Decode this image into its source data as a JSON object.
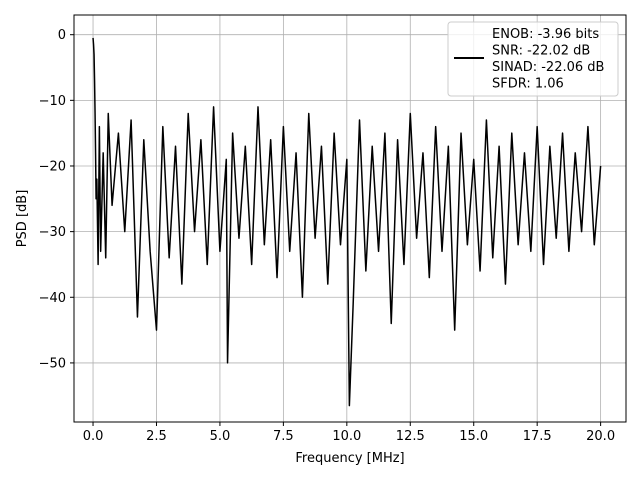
{
  "chart_data": {
    "type": "line",
    "title": "",
    "xlabel": "Frequency [MHz]",
    "ylabel": "PSD [dB]",
    "xlim": [
      -0.75,
      21.0
    ],
    "ylim": [
      -59,
      3
    ],
    "grid": true,
    "legend_position": "top-right",
    "x_ticks": [
      {
        "value": 0.0,
        "label": "0.0"
      },
      {
        "value": 2.5,
        "label": "2.5"
      },
      {
        "value": 5.0,
        "label": "5.0"
      },
      {
        "value": 7.5,
        "label": "7.5"
      },
      {
        "value": 10.0,
        "label": "10.0"
      },
      {
        "value": 12.5,
        "label": "12.5"
      },
      {
        "value": 15.0,
        "label": "15.0"
      },
      {
        "value": 17.5,
        "label": "17.5"
      },
      {
        "value": 20.0,
        "label": "20.0"
      }
    ],
    "y_ticks": [
      {
        "value": 0,
        "label": "0"
      },
      {
        "value": -10,
        "label": "−10"
      },
      {
        "value": -20,
        "label": "−20"
      },
      {
        "value": -30,
        "label": "−30"
      },
      {
        "value": -40,
        "label": "−40"
      },
      {
        "value": -50,
        "label": "−50"
      }
    ],
    "legend": {
      "entries": [
        "ENOB: -3.96 bits",
        "SNR: -22.02 dB",
        "SINAD: -22.06 dB",
        "SFDR: 1.06"
      ]
    },
    "colors": {
      "line": "#000000",
      "grid": "#b0b0b0",
      "axes": "#000000"
    },
    "series": [
      {
        "color": "#000000",
        "x": [
          0.0,
          0.02,
          0.04,
          0.06,
          0.08,
          0.1,
          0.12,
          0.15,
          0.2,
          0.25,
          0.3,
          0.4,
          0.5,
          0.6,
          0.75,
          1.0,
          1.25,
          1.5,
          1.75,
          2.0,
          2.25,
          2.5,
          2.75,
          3.0,
          3.25,
          3.5,
          3.75,
          4.0,
          4.25,
          4.5,
          4.75,
          5.0,
          5.25,
          5.3,
          5.5,
          5.75,
          6.0,
          6.25,
          6.5,
          6.75,
          7.0,
          7.25,
          7.5,
          7.75,
          8.0,
          8.25,
          8.5,
          8.75,
          9.0,
          9.25,
          9.5,
          9.75,
          10.0,
          10.1,
          10.25,
          10.5,
          10.75,
          11.0,
          11.25,
          11.5,
          11.75,
          12.0,
          12.25,
          12.5,
          12.75,
          13.0,
          13.25,
          13.5,
          13.75,
          14.0,
          14.25,
          14.5,
          14.75,
          15.0,
          15.25,
          15.5,
          15.75,
          16.0,
          16.25,
          16.5,
          16.75,
          17.0,
          17.25,
          17.5,
          17.75,
          18.0,
          18.25,
          18.5,
          18.75,
          19.0,
          19.25,
          19.5,
          19.75,
          20.0
        ],
        "y": [
          -0.5,
          -1.5,
          -3,
          -7,
          -12,
          -18,
          -25,
          -22,
          -35,
          -14,
          -33,
          -18,
          -34,
          -12,
          -26,
          -15,
          -30,
          -13,
          -43,
          -16,
          -33,
          -45,
          -14,
          -34,
          -17,
          -38,
          -12,
          -30,
          -16,
          -35,
          -11,
          -33,
          -19,
          -50,
          -15,
          -31,
          -17,
          -35,
          -11,
          -32,
          -16,
          -37,
          -14,
          -33,
          -18,
          -40,
          -12,
          -31,
          -17,
          -38,
          -15,
          -32,
          -19,
          -56.5,
          -41,
          -13,
          -36,
          -17,
          -33,
          -15,
          -44,
          -16,
          -35,
          -12,
          -31,
          -18,
          -37,
          -14,
          -33,
          -17,
          -45,
          -15,
          -32,
          -19,
          -36,
          -13,
          -34,
          -17,
          -38,
          -15,
          -32,
          -18,
          -33,
          -14,
          -35,
          -17,
          -31,
          -15,
          -33,
          -18,
          -30,
          -14,
          -32,
          -20
        ]
      }
    ]
  }
}
